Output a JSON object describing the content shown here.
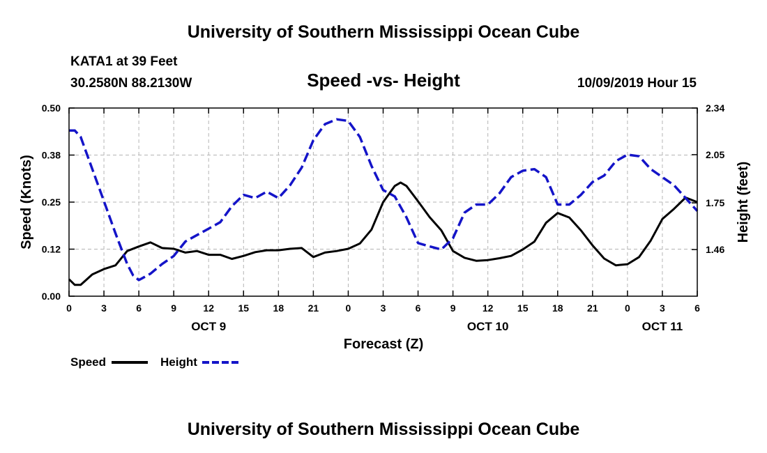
{
  "header": {
    "top_title": "University of Southern Mississippi Ocean Cube",
    "bottom_title": "University of Southern Mississippi Ocean Cube",
    "station": "KATA1 at 39 Feet",
    "coords": "30.2580N 88.2130W",
    "date": "10/09/2019 Hour 15"
  },
  "colors": {
    "speed": "#000000",
    "height": "#1414c8",
    "grid": "#b4b4b4"
  },
  "chart_data": {
    "type": "line",
    "title": "Speed -vs- Height",
    "xlabel": "Forecast (Z)",
    "ylabel_left": "Speed (Knots)",
    "ylabel_right": "Height (feet)",
    "x_range": [
      0,
      54
    ],
    "x_ticks": [
      0,
      3,
      6,
      9,
      12,
      15,
      18,
      21,
      24,
      27,
      30,
      33,
      36,
      39,
      42,
      45,
      48,
      51,
      54
    ],
    "x_tick_labels": [
      "0",
      "3",
      "6",
      "9",
      "12",
      "15",
      "18",
      "21",
      "0",
      "3",
      "6",
      "9",
      "12",
      "15",
      "18",
      "21",
      "0",
      "3",
      "6"
    ],
    "day_labels": [
      {
        "x": 12,
        "label": "OCT 9"
      },
      {
        "x": 36,
        "label": "OCT 10"
      },
      {
        "x": 51,
        "label": "OCT 11"
      }
    ],
    "y_left": {
      "range": [
        0,
        0.5
      ],
      "ticks": [
        0.0,
        0.125,
        0.25,
        0.375,
        0.5
      ],
      "tick_labels": [
        "0.00",
        "0.12",
        "0.25",
        "0.38",
        "0.50"
      ]
    },
    "y_right": {
      "range": [
        1.17,
        2.34
      ],
      "ticks": [
        1.46,
        1.75,
        2.05,
        2.34
      ],
      "tick_labels": [
        "1.46",
        "1.75",
        "2.05",
        "2.34"
      ]
    },
    "grid": true,
    "legend": [
      {
        "name": "Speed",
        "style": "solid"
      },
      {
        "name": "Height",
        "style": "dashed"
      }
    ],
    "series": [
      {
        "name": "Speed",
        "axis": "left",
        "style": "solid",
        "x": [
          0,
          0.5,
          1,
          2,
          3,
          4,
          5,
          6,
          7,
          8,
          9,
          10,
          11,
          12,
          13,
          14,
          15,
          16,
          17,
          18,
          19,
          20,
          21,
          22,
          23,
          24,
          25,
          26,
          27,
          28,
          28.5,
          29,
          30,
          31,
          32,
          33,
          34,
          35,
          36,
          37,
          38,
          39,
          40,
          41,
          42,
          43,
          44,
          45,
          46,
          47,
          48,
          49,
          50,
          51,
          52,
          53,
          54
        ],
        "y": [
          0.045,
          0.03,
          0.03,
          0.058,
          0.072,
          0.082,
          0.12,
          0.132,
          0.143,
          0.128,
          0.126,
          0.116,
          0.12,
          0.11,
          0.11,
          0.099,
          0.107,
          0.117,
          0.122,
          0.122,
          0.126,
          0.128,
          0.104,
          0.116,
          0.12,
          0.126,
          0.14,
          0.177,
          0.25,
          0.293,
          0.302,
          0.293,
          0.252,
          0.21,
          0.175,
          0.12,
          0.102,
          0.094,
          0.096,
          0.101,
          0.107,
          0.124,
          0.145,
          0.195,
          0.221,
          0.209,
          0.175,
          0.135,
          0.1,
          0.082,
          0.085,
          0.104,
          0.148,
          0.205,
          0.232,
          0.262,
          0.25
        ]
      },
      {
        "name": "Height",
        "axis": "right",
        "style": "dashed",
        "x": [
          0,
          0.5,
          1,
          2,
          3,
          4,
          5,
          5.5,
          6,
          7,
          8,
          9,
          10,
          11,
          12,
          13,
          14,
          15,
          16,
          17,
          18,
          19,
          20,
          21,
          22,
          23,
          24,
          25,
          26,
          27,
          28,
          29,
          30,
          31,
          32,
          33,
          34,
          35,
          36,
          37,
          38,
          39,
          40,
          41,
          42,
          43,
          44,
          45,
          46,
          47,
          48,
          49,
          50,
          51,
          52,
          53,
          54
        ],
        "y": [
          2.2,
          2.2,
          2.16,
          1.96,
          1.76,
          1.56,
          1.37,
          1.3,
          1.27,
          1.31,
          1.37,
          1.42,
          1.51,
          1.55,
          1.59,
          1.63,
          1.73,
          1.8,
          1.78,
          1.82,
          1.78,
          1.86,
          1.97,
          2.14,
          2.24,
          2.27,
          2.26,
          2.16,
          1.98,
          1.83,
          1.79,
          1.66,
          1.5,
          1.48,
          1.46,
          1.53,
          1.69,
          1.74,
          1.74,
          1.81,
          1.91,
          1.95,
          1.96,
          1.91,
          1.74,
          1.74,
          1.8,
          1.88,
          1.92,
          2.01,
          2.05,
          2.04,
          1.96,
          1.91,
          1.86,
          1.78,
          1.7
        ]
      }
    ]
  }
}
